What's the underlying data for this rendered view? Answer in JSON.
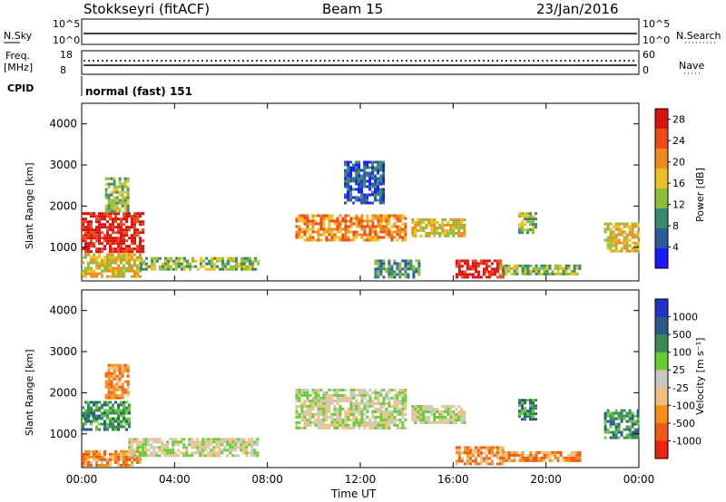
{
  "header": {
    "station": "Stokkseyri (fitACF)",
    "beam": "Beam 15",
    "date": "23/Jan/2016"
  },
  "strips": {
    "nsky_label": "N.Sky",
    "nsky_ticks": [
      "10^5",
      "10^0"
    ],
    "nsearch_label": "N.Search",
    "nsearch_ticks": [
      "10^5",
      "10^0"
    ],
    "freq_label": "Freq.",
    "freq_unit": "[MHz]",
    "freq_ticks": [
      "18",
      "8"
    ],
    "nave_label": "Nave",
    "nave_ticks": [
      "60",
      "0"
    ],
    "cpid_label": "CPID",
    "cpid_value": "normal (fast) 151"
  },
  "colors": {
    "power": [
      "#1a1aff",
      "#2a5a9a",
      "#3a8a70",
      "#8fbf3a",
      "#f0c020",
      "#f08a1a",
      "#ee4a18",
      "#dd1111"
    ],
    "velocity": [
      "#ee2211",
      "#f05a14",
      "#f59010",
      "#f0c080",
      "#c8c8c0",
      "#66cc33",
      "#3a8a55",
      "#2a5a8a",
      "#2233cc"
    ]
  },
  "chart_data": [
    {
      "type": "heatmap",
      "name": "power",
      "xlabel": "",
      "ylabel": "Slant Range [km]",
      "x_ticks": [
        "00:00",
        "04:00",
        "08:00",
        "12:00",
        "16:00",
        "20:00",
        "00:00"
      ],
      "y_ticks": [
        "1000",
        "2000",
        "3000",
        "4000"
      ],
      "ylim": [
        180,
        4500
      ],
      "colorbar_label": "Power [dB]",
      "colorbar_ticks": [
        "4",
        "8",
        "12",
        "16",
        "20",
        "24",
        "28"
      ],
      "colorbar_range": [
        0,
        30
      ],
      "regions": [
        {
          "t0": 0.0,
          "t1": 2.6,
          "r0": 900,
          "r1": 1850,
          "level": 7
        },
        {
          "t0": 0.0,
          "t1": 2.5,
          "r0": 280,
          "r1": 850,
          "level": 4
        },
        {
          "t0": 2.5,
          "t1": 7.6,
          "r0": 430,
          "r1": 760,
          "level": 3
        },
        {
          "t0": 1.0,
          "t1": 2.0,
          "r0": 1900,
          "r1": 2700,
          "level": 3
        },
        {
          "t0": 9.2,
          "t1": 14.0,
          "r0": 1150,
          "r1": 1800,
          "level": 5
        },
        {
          "t0": 11.3,
          "t1": 13.0,
          "r0": 2100,
          "r1": 3100,
          "level": 1
        },
        {
          "t0": 12.6,
          "t1": 14.5,
          "r0": 260,
          "r1": 700,
          "level": 2
        },
        {
          "t0": 14.2,
          "t1": 16.5,
          "r0": 1250,
          "r1": 1700,
          "level": 4
        },
        {
          "t0": 16.1,
          "t1": 18.2,
          "r0": 250,
          "r1": 700,
          "level": 7
        },
        {
          "t0": 18.0,
          "t1": 21.5,
          "r0": 320,
          "r1": 580,
          "level": 3
        },
        {
          "t0": 18.8,
          "t1": 19.6,
          "r0": 1350,
          "r1": 1850,
          "level": 3
        },
        {
          "t0": 22.5,
          "t1": 24.0,
          "r0": 900,
          "r1": 1600,
          "level": 4
        }
      ]
    },
    {
      "type": "heatmap",
      "name": "velocity",
      "xlabel": "Time UT",
      "ylabel": "Slant Range [km]",
      "x_ticks": [
        "00:00",
        "04:00",
        "08:00",
        "12:00",
        "16:00",
        "20:00",
        "00:00"
      ],
      "y_ticks": [
        "1000",
        "2000",
        "3000",
        "4000"
      ],
      "ylim": [
        180,
        4500
      ],
      "colorbar_label": "Velocity [m s⁻¹]",
      "colorbar_ticks": [
        "1000",
        "500",
        "100",
        "25",
        "-25",
        "-100",
        "-500",
        "-1000"
      ],
      "regions": [
        {
          "t0": 0.0,
          "t1": 2.0,
          "r0": 1100,
          "r1": 1800,
          "level": 6
        },
        {
          "t0": 0.0,
          "t1": 2.5,
          "r0": 250,
          "r1": 600,
          "level": 2
        },
        {
          "t0": 2.0,
          "t1": 7.6,
          "r0": 500,
          "r1": 900,
          "level": 4
        },
        {
          "t0": 1.0,
          "t1": 2.0,
          "r0": 1900,
          "r1": 2700,
          "level": 2
        },
        {
          "t0": 9.2,
          "t1": 14.0,
          "r0": 1150,
          "r1": 2100,
          "level": 4
        },
        {
          "t0": 14.2,
          "t1": 16.5,
          "r0": 1250,
          "r1": 1700,
          "level": 4
        },
        {
          "t0": 16.1,
          "t1": 18.2,
          "r0": 250,
          "r1": 700,
          "level": 2
        },
        {
          "t0": 18.0,
          "t1": 21.5,
          "r0": 320,
          "r1": 580,
          "level": 2
        },
        {
          "t0": 18.8,
          "t1": 19.6,
          "r0": 1350,
          "r1": 1850,
          "level": 6
        },
        {
          "t0": 22.5,
          "t1": 24.0,
          "r0": 900,
          "r1": 1600,
          "level": 6
        }
      ]
    }
  ]
}
